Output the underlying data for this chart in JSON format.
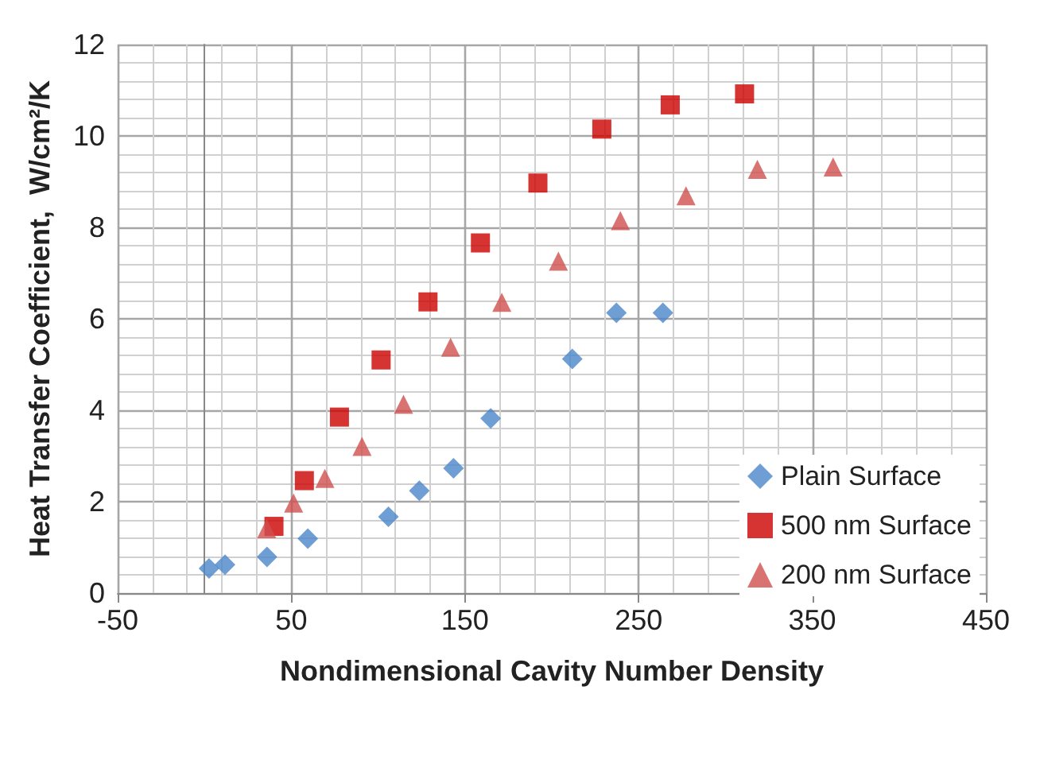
{
  "chart_data": {
    "type": "scatter",
    "xlabel": "Nondimensional Cavity Number Density",
    "ylabel": "Heat Transfer Coefficient,  W/cm²/K",
    "xlim": [
      -50,
      450
    ],
    "xticks": [
      -50,
      50,
      150,
      250,
      350,
      450
    ],
    "ylim": [
      0,
      12
    ],
    "yticks": [
      0,
      2,
      4,
      6,
      8,
      10,
      12
    ],
    "grid": true,
    "legend": "bottom right",
    "series": [
      {
        "name": "Plain Surface",
        "color": "#4a86c8",
        "marker": "diamond",
        "x": [
          2.6,
          11.8,
          36,
          59.5,
          105.9,
          123.7,
          143.4,
          164.8,
          211.8,
          237.2,
          264
        ],
        "values": [
          0.54,
          0.62,
          0.79,
          1.19,
          1.67,
          2.24,
          2.73,
          3.82,
          5.12,
          6.13,
          6.13
        ]
      },
      {
        "name": "500 nm Surface",
        "color": "#cc0000",
        "marker": "square",
        "x": [
          40,
          57.5,
          77.7,
          101.7,
          128.7,
          158.9,
          192,
          228.8,
          268.2,
          311
        ],
        "values": [
          1.46,
          2.46,
          3.85,
          5.1,
          6.37,
          7.66,
          8.97,
          10.15,
          10.68,
          10.92
        ]
      },
      {
        "name": "200 nm Surface",
        "color": "#d0504f",
        "marker": "triangle",
        "x": [
          35.8,
          51.3,
          69.3,
          90.7,
          114.6,
          141.7,
          171.2,
          203.8,
          239.5,
          277.3,
          318.4,
          362
        ],
        "values": [
          1.41,
          1.97,
          2.51,
          3.21,
          4.13,
          5.38,
          6.36,
          7.26,
          8.15,
          8.69,
          9.27,
          9.32
        ]
      }
    ]
  }
}
